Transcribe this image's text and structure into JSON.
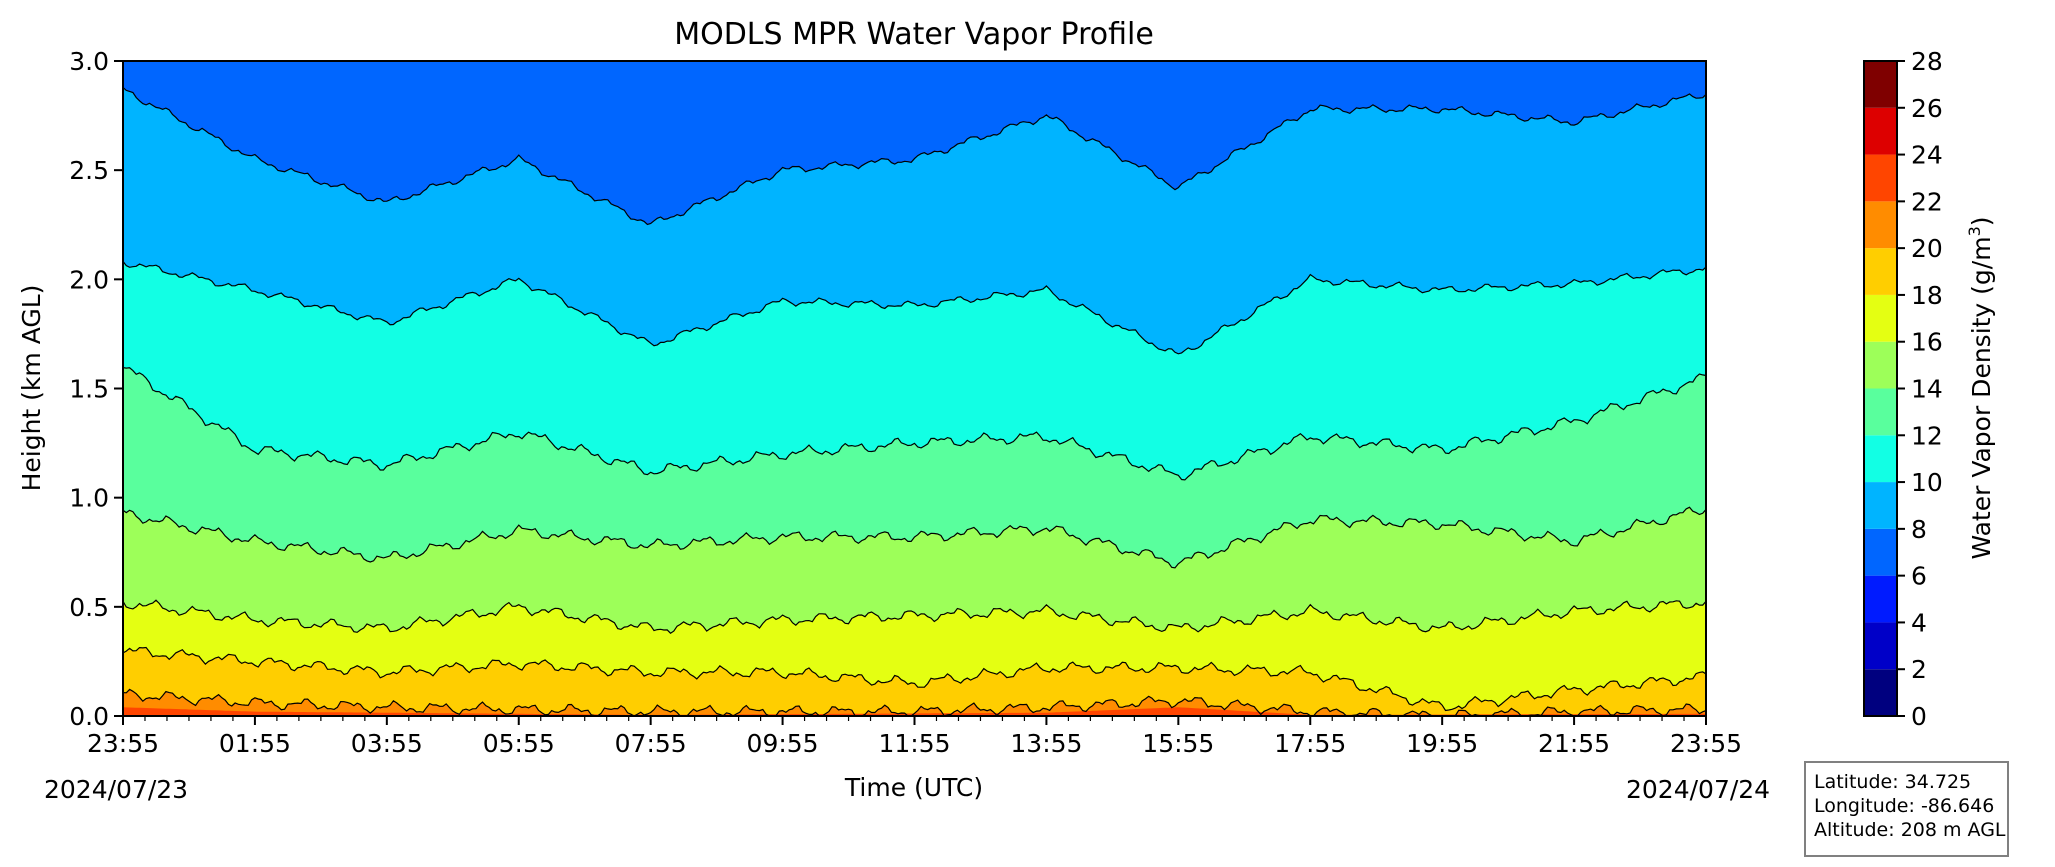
{
  "chart_data": {
    "type": "contourf",
    "title": "MODLS MPR Water Vapor Profile",
    "xlabel": "Time (UTC)",
    "ylabel": "Height (km AGL)",
    "x_tick_labels": [
      "23:55",
      "01:55",
      "03:55",
      "05:55",
      "07:55",
      "09:55",
      "11:55",
      "13:55",
      "15:55",
      "17:55",
      "19:55",
      "21:55",
      "23:55"
    ],
    "x_ticks_hours": [
      0,
      2,
      4,
      6,
      8,
      10,
      12,
      14,
      16,
      18,
      20,
      22,
      24
    ],
    "date_start": "2024/07/23",
    "date_end": "2024/07/24",
    "xlim_hours": [
      0,
      24
    ],
    "ylim": [
      0,
      3.0
    ],
    "y_ticks": [
      "0.0",
      "0.5",
      "1.0",
      "1.5",
      "2.0",
      "2.5",
      "3.0"
    ],
    "colorbar": {
      "label": "Water Vapor Density (g/m",
      "label_sup": "3",
      "label_close": ")",
      "levels": [
        0,
        2,
        4,
        6,
        8,
        10,
        12,
        14,
        16,
        18,
        20,
        22,
        24,
        26,
        28
      ],
      "colors": [
        "#00007f",
        "#0000c8",
        "#001bff",
        "#0066ff",
        "#00b4ff",
        "#12ffe4",
        "#59ff9d",
        "#9dff59",
        "#e4ff12",
        "#ffce00",
        "#ff8c00",
        "#ff4500",
        "#dd0000",
        "#7f0000"
      ]
    },
    "contour_levels_shown": [
      6,
      8,
      10,
      12,
      14,
      16,
      18,
      20
    ],
    "level_heights_km": [
      {
        "level": 8,
        "profile_hours": [
          0,
          2,
          4,
          6,
          8,
          10,
          12,
          14,
          16,
          18,
          20,
          22,
          24
        ],
        "height_km": [
          2.87,
          2.55,
          2.35,
          2.55,
          2.25,
          2.5,
          2.55,
          2.75,
          2.42,
          2.78,
          2.78,
          2.72,
          2.85
        ]
      },
      {
        "level": 10,
        "profile_hours": [
          0,
          2,
          4,
          6,
          8,
          10,
          12,
          14,
          16,
          18,
          20,
          22,
          24
        ],
        "height_km": [
          2.08,
          1.95,
          1.8,
          2.0,
          1.7,
          1.9,
          1.88,
          1.95,
          1.65,
          2.0,
          1.95,
          1.98,
          2.05
        ]
      },
      {
        "level": 12,
        "profile_hours": [
          0,
          2,
          4,
          6,
          8,
          10,
          12,
          14,
          16,
          18,
          20,
          22,
          24
        ],
        "height_km": [
          1.6,
          1.22,
          1.15,
          1.3,
          1.12,
          1.2,
          1.25,
          1.28,
          1.1,
          1.28,
          1.22,
          1.35,
          1.55
        ]
      },
      {
        "level": 14,
        "profile_hours": [
          0,
          2,
          4,
          6,
          8,
          10,
          12,
          14,
          16,
          18,
          20,
          22,
          24
        ],
        "height_km": [
          0.93,
          0.8,
          0.72,
          0.85,
          0.78,
          0.82,
          0.82,
          0.86,
          0.7,
          0.9,
          0.88,
          0.8,
          0.95
        ]
      },
      {
        "level": 16,
        "profile_hours": [
          0,
          2,
          4,
          6,
          8,
          10,
          12,
          14,
          16,
          18,
          20,
          22,
          24
        ],
        "height_km": [
          0.52,
          0.44,
          0.4,
          0.5,
          0.4,
          0.44,
          0.46,
          0.48,
          0.4,
          0.48,
          0.4,
          0.48,
          0.52
        ]
      },
      {
        "level": 18,
        "profile_hours": [
          0,
          2,
          4,
          6,
          8,
          10,
          12,
          14,
          16,
          18,
          20,
          22,
          24
        ],
        "height_km": [
          0.3,
          0.25,
          0.2,
          0.24,
          0.2,
          0.2,
          0.15,
          0.22,
          0.22,
          0.2,
          0.04,
          0.12,
          0.18
        ]
      },
      {
        "level": 20,
        "profile_hours": [
          0,
          2,
          4,
          6,
          8,
          10,
          12,
          14,
          16,
          18,
          20,
          22,
          24
        ],
        "height_km": [
          0.1,
          0.06,
          0.04,
          0.03,
          0.02,
          0.02,
          0.02,
          0.04,
          0.07,
          0.02,
          0.0,
          0.02,
          0.03
        ]
      }
    ],
    "grid": false,
    "legend": "colorbar-right"
  },
  "station": {
    "latitude": "Latitude: 34.725",
    "longitude": "Longitude: -86.646",
    "altitude": "Altitude: 208 m AGL"
  }
}
